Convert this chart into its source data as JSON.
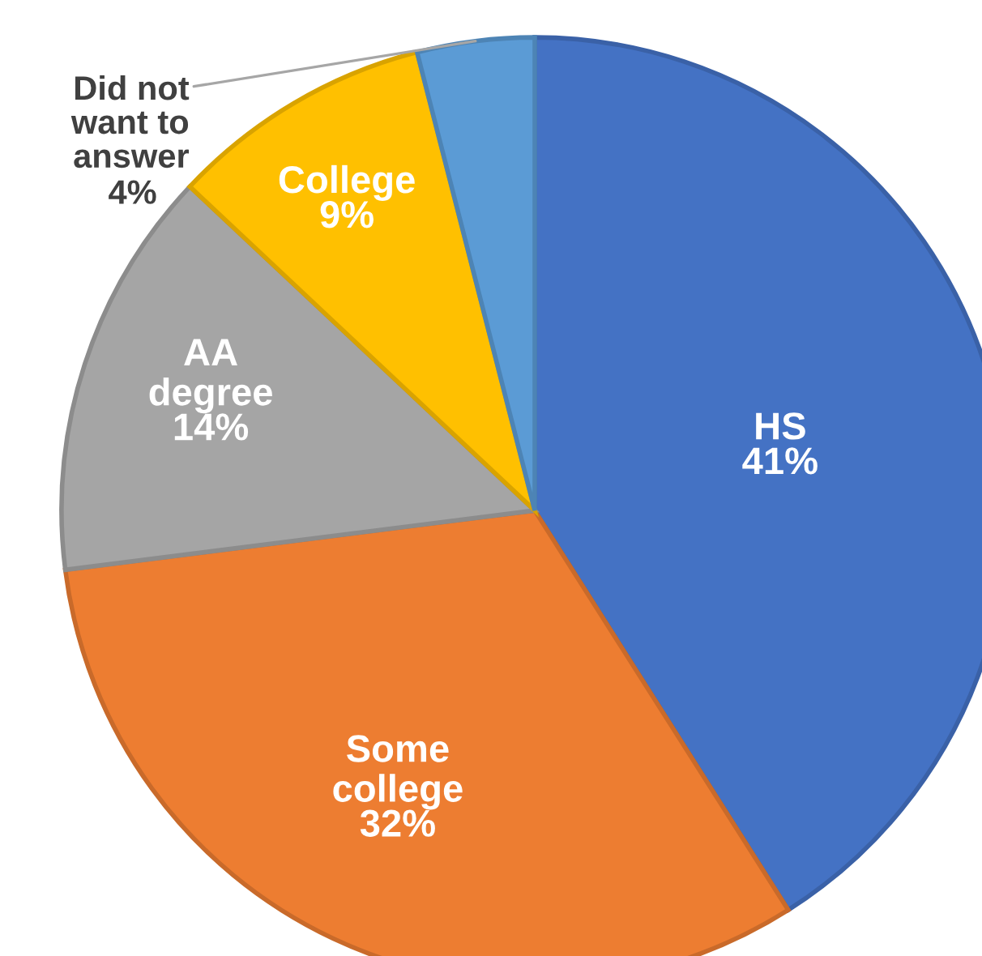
{
  "chart_data": {
    "type": "pie",
    "categories": [
      "HS",
      "Some\ncollege",
      "AA\ndegree",
      "College",
      "Did not\nwant to\nanswer"
    ],
    "values": [
      41,
      32,
      14,
      9,
      4
    ],
    "colors": [
      "#4472c4",
      "#ed7d31",
      "#a5a5a5",
      "#ffc000",
      "#5b9bd5"
    ],
    "value_labels": [
      "41%",
      "32%",
      "14%",
      "9%",
      "4%"
    ]
  }
}
